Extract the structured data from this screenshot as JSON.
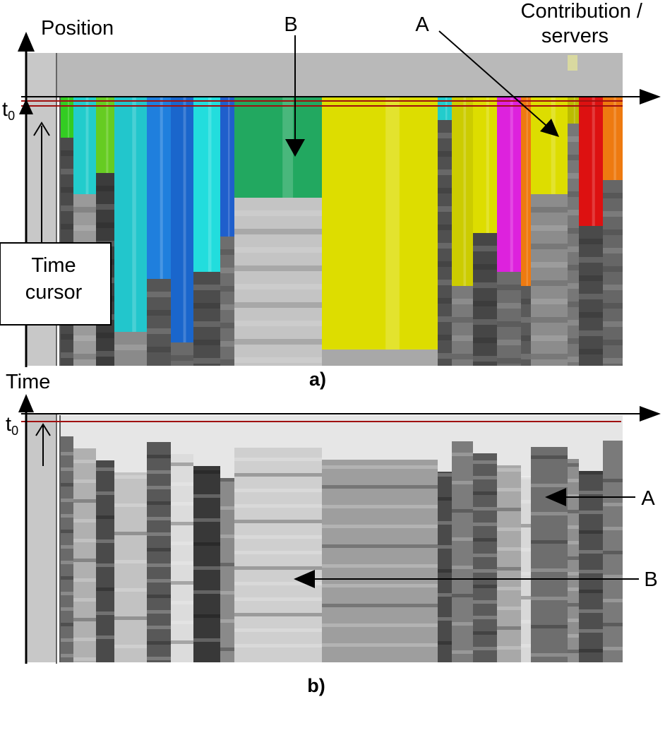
{
  "panel_a": {
    "caption": "a)",
    "y_axis_label": "Position",
    "x_axis_label_line1": "Contribution /",
    "x_axis_label_line2": "servers",
    "t0_label": "t",
    "t0_subscript": "0",
    "time_cursor_line1": "Time",
    "time_cursor_line2": "cursor",
    "marker_a": "A",
    "marker_b": "B"
  },
  "panel_b": {
    "caption": "b)",
    "y_axis_label": "Time",
    "t0_label": "t",
    "t0_subscript": "0",
    "marker_a": "A",
    "marker_b": "B"
  },
  "colors": {
    "background": "#ffffff",
    "axis": "#000000",
    "time_line": "#a01010",
    "inactive": "#b4b4b4"
  }
}
